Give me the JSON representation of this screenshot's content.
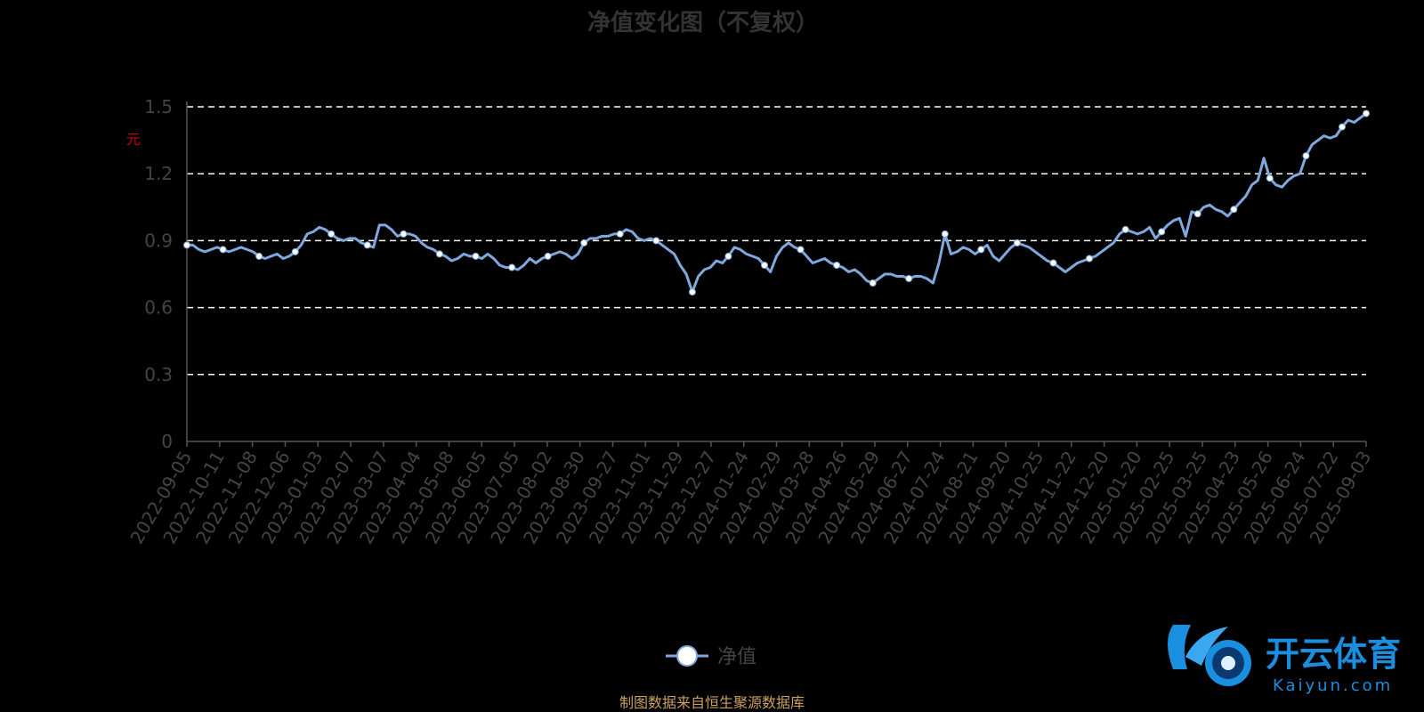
{
  "chart_data": {
    "type": "line",
    "title": "净值变化图（不复权）",
    "ylabel": "元",
    "ylim": [
      0,
      1.5
    ],
    "yticks": [
      "0",
      "0.3",
      "0.6",
      "0.9",
      "1.2",
      "1.5"
    ],
    "grid": true,
    "legend_position": "bottom-center",
    "x_tick_labels": [
      "2022-09-05",
      "2022-10-11",
      "2022-11-08",
      "2022-12-06",
      "2023-01-03",
      "2023-02-07",
      "2023-03-07",
      "2023-04-04",
      "2023-05-08",
      "2023-06-05",
      "2023-07-05",
      "2023-08-02",
      "2023-08-30",
      "2023-09-27",
      "2023-11-01",
      "2023-11-29",
      "2023-12-27",
      "2024-01-24",
      "2024-02-29",
      "2024-03-28",
      "2024-04-26",
      "2024-05-29",
      "2024-06-27",
      "2024-07-24",
      "2024-08-21",
      "2024-09-20",
      "2024-10-25",
      "2024-11-22",
      "2024-12-20",
      "2025-01-20",
      "2025-02-25",
      "2025-03-25",
      "2025-04-23",
      "2025-05-26",
      "2025-06-24",
      "2025-07-22",
      "2025-09-03"
    ],
    "series": [
      {
        "name": "净值",
        "color": "#7fa8dc",
        "values": [
          0.88,
          0.88,
          0.86,
          0.85,
          0.86,
          0.87,
          0.86,
          0.85,
          0.86,
          0.87,
          0.86,
          0.85,
          0.83,
          0.82,
          0.83,
          0.84,
          0.82,
          0.83,
          0.85,
          0.88,
          0.93,
          0.94,
          0.96,
          0.95,
          0.93,
          0.91,
          0.9,
          0.91,
          0.91,
          0.89,
          0.88,
          0.87,
          0.97,
          0.97,
          0.95,
          0.92,
          0.93,
          0.93,
          0.92,
          0.89,
          0.87,
          0.86,
          0.84,
          0.83,
          0.81,
          0.82,
          0.84,
          0.83,
          0.83,
          0.82,
          0.84,
          0.82,
          0.79,
          0.78,
          0.78,
          0.77,
          0.79,
          0.82,
          0.8,
          0.82,
          0.83,
          0.84,
          0.85,
          0.84,
          0.82,
          0.84,
          0.89,
          0.91,
          0.91,
          0.92,
          0.92,
          0.93,
          0.93,
          0.95,
          0.94,
          0.91,
          0.9,
          0.91,
          0.9,
          0.88,
          0.86,
          0.84,
          0.79,
          0.75,
          0.67,
          0.74,
          0.77,
          0.78,
          0.81,
          0.8,
          0.83,
          0.87,
          0.86,
          0.84,
          0.83,
          0.82,
          0.79,
          0.76,
          0.83,
          0.87,
          0.89,
          0.87,
          0.86,
          0.83,
          0.8,
          0.81,
          0.82,
          0.8,
          0.79,
          0.78,
          0.76,
          0.77,
          0.75,
          0.72,
          0.71,
          0.73,
          0.75,
          0.75,
          0.74,
          0.74,
          0.73,
          0.74,
          0.74,
          0.73,
          0.71,
          0.8,
          0.93,
          0.84,
          0.85,
          0.87,
          0.86,
          0.84,
          0.86,
          0.88,
          0.83,
          0.81,
          0.84,
          0.87,
          0.89,
          0.88,
          0.87,
          0.85,
          0.83,
          0.81,
          0.8,
          0.78,
          0.76,
          0.78,
          0.8,
          0.81,
          0.82,
          0.83,
          0.85,
          0.87,
          0.89,
          0.93,
          0.95,
          0.94,
          0.93,
          0.94,
          0.96,
          0.91,
          0.94,
          0.97,
          0.99,
          1.0,
          0.92,
          1.03,
          1.02,
          1.05,
          1.06,
          1.04,
          1.03,
          1.01,
          1.04,
          1.07,
          1.1,
          1.15,
          1.17,
          1.27,
          1.18,
          1.15,
          1.14,
          1.17,
          1.19,
          1.2,
          1.28,
          1.33,
          1.35,
          1.37,
          1.36,
          1.37,
          1.41,
          1.44,
          1.43,
          1.45,
          1.47
        ]
      }
    ]
  },
  "footer": {
    "source": "制图数据来自恒生聚源数据库"
  },
  "logo": {
    "text": "开云体育",
    "url": "Kaiyun.com"
  }
}
